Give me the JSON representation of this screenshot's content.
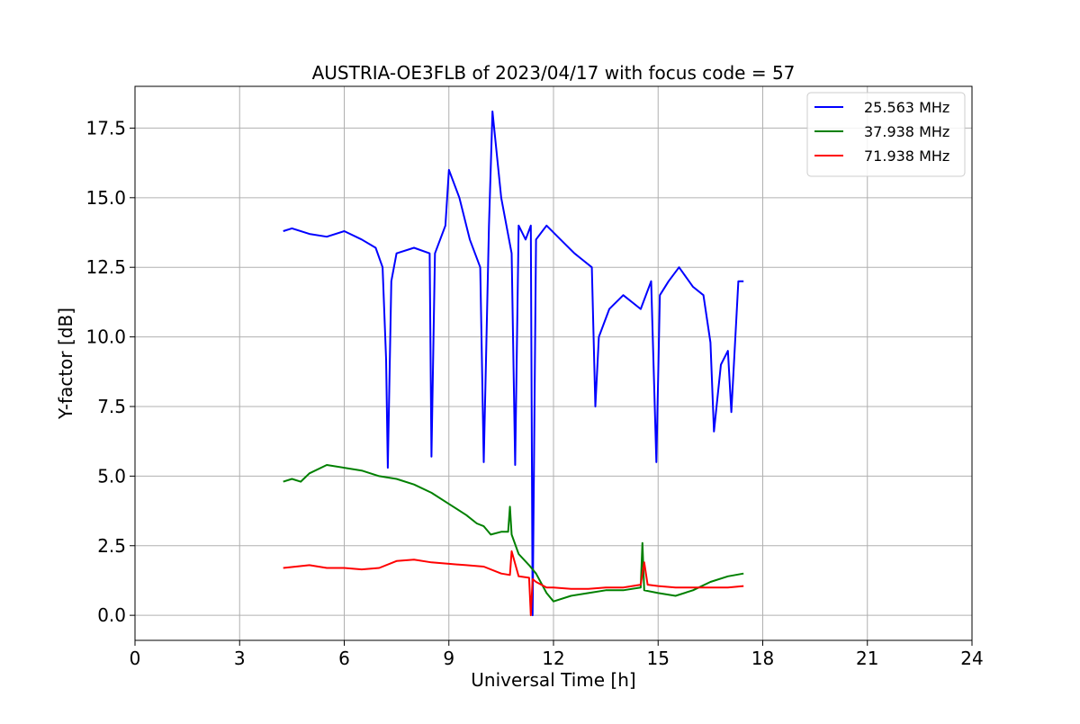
{
  "chart_data": {
    "type": "line",
    "title": "AUSTRIA-OE3FLB of 2023/04/17 with focus code = 57",
    "xlabel": "Universal Time [h]",
    "ylabel": "Y-factor [dB]",
    "xlim": [
      0,
      24
    ],
    "ylim": [
      -0.9,
      19.0
    ],
    "xticks": [
      0,
      3,
      6,
      9,
      12,
      15,
      18,
      21,
      24
    ],
    "xtick_labels": [
      "0",
      "3",
      "6",
      "9",
      "12",
      "15",
      "18",
      "21",
      "24"
    ],
    "yticks": [
      0.0,
      2.5,
      5.0,
      7.5,
      10.0,
      12.5,
      15.0,
      17.5
    ],
    "ytick_labels": [
      "0.0",
      "2.5",
      "5.0",
      "7.5",
      "10.0",
      "12.5",
      "15.0",
      "17.5"
    ],
    "grid": true,
    "legend_position": "top-right",
    "series": [
      {
        "name": "25.563 MHz",
        "color": "#0000ff",
        "x": [
          4.25,
          4.5,
          5.0,
          5.5,
          6.0,
          6.5,
          6.9,
          7.1,
          7.2,
          7.25,
          7.35,
          7.5,
          8.0,
          8.45,
          8.5,
          8.6,
          8.9,
          9.0,
          9.3,
          9.6,
          9.9,
          10.0,
          10.15,
          10.25,
          10.5,
          10.8,
          10.9,
          11.0,
          11.2,
          11.35,
          11.4,
          11.5,
          11.8,
          12.2,
          12.6,
          12.8,
          13.1,
          13.2,
          13.3,
          13.6,
          14.0,
          14.5,
          14.8,
          14.95,
          15.05,
          15.3,
          15.6,
          16.0,
          16.3,
          16.5,
          16.6,
          16.8,
          17.0,
          17.1,
          17.3,
          17.45
        ],
        "y": [
          13.8,
          13.9,
          13.7,
          13.6,
          13.8,
          13.5,
          13.2,
          12.5,
          9.2,
          5.3,
          12.0,
          13.0,
          13.2,
          13.0,
          5.7,
          13.0,
          14.0,
          16.0,
          15.0,
          13.5,
          12.5,
          5.5,
          14.0,
          18.1,
          15.0,
          13.0,
          5.4,
          14.0,
          13.5,
          14.0,
          0.0,
          13.5,
          14.0,
          13.5,
          13.0,
          12.8,
          12.5,
          7.5,
          10.0,
          11.0,
          11.5,
          11.0,
          12.0,
          5.5,
          11.5,
          12.0,
          12.5,
          11.8,
          11.5,
          9.8,
          6.6,
          9.0,
          9.5,
          7.3,
          12.0,
          12.0
        ]
      },
      {
        "name": "37.938 MHz",
        "color": "#008000",
        "x": [
          4.25,
          4.5,
          4.75,
          5.0,
          5.5,
          6.0,
          6.5,
          7.0,
          7.5,
          8.0,
          8.5,
          9.0,
          9.5,
          9.8,
          10.0,
          10.2,
          10.5,
          10.7,
          10.75,
          10.8,
          11.0,
          11.3,
          11.5,
          11.8,
          12.0,
          12.5,
          13.0,
          13.5,
          14.0,
          14.5,
          14.55,
          14.6,
          15.0,
          15.5,
          16.0,
          16.5,
          17.0,
          17.45
        ],
        "y": [
          4.8,
          4.9,
          4.8,
          5.1,
          5.4,
          5.3,
          5.2,
          5.0,
          4.9,
          4.7,
          4.4,
          4.0,
          3.6,
          3.3,
          3.2,
          2.9,
          3.0,
          3.0,
          3.9,
          2.9,
          2.2,
          1.8,
          1.5,
          0.8,
          0.5,
          0.7,
          0.8,
          0.9,
          0.9,
          1.0,
          2.6,
          0.9,
          0.8,
          0.7,
          0.9,
          1.2,
          1.4,
          1.5
        ]
      },
      {
        "name": "71.938 MHz",
        "color": "#ff0000",
        "x": [
          4.25,
          5.0,
          5.5,
          6.0,
          6.5,
          7.0,
          7.5,
          8.0,
          8.5,
          9.0,
          9.5,
          10.0,
          10.5,
          10.75,
          10.8,
          11.0,
          11.3,
          11.35,
          11.4,
          11.5,
          11.8,
          12.0,
          12.5,
          13.0,
          13.5,
          14.0,
          14.5,
          14.6,
          14.7,
          15.0,
          15.5,
          16.0,
          16.5,
          17.0,
          17.45
        ],
        "y": [
          1.7,
          1.8,
          1.7,
          1.7,
          1.65,
          1.7,
          1.95,
          2.0,
          1.9,
          1.85,
          1.8,
          1.75,
          1.5,
          1.45,
          2.3,
          1.4,
          1.35,
          0.0,
          1.3,
          1.2,
          1.0,
          1.0,
          0.95,
          0.95,
          1.0,
          1.0,
          1.1,
          1.9,
          1.1,
          1.05,
          1.0,
          1.0,
          1.0,
          1.0,
          1.05
        ]
      }
    ]
  }
}
